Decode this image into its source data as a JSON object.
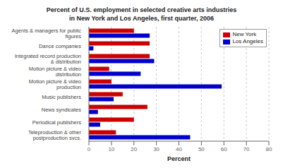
{
  "chart_data": {
    "type": "bar",
    "orientation": "horizontal",
    "title": "Percent of U.S. employment in selected creative arts industries\nin New York and Los Angeles, first quarter, 2006",
    "categories": [
      "Agents & managers for public figures",
      "Dance companies",
      "Integrated record production & distribution",
      "Motion picture & video distribution",
      "Motion picture & video production",
      "Music publishers",
      "News syndicates",
      "Periodical publishers",
      "Teleproduction & other postproduction svcs."
    ],
    "series": [
      {
        "name": "New York",
        "color": "#cc0000",
        "values": [
          20,
          27,
          27,
          9,
          10,
          15,
          26,
          20,
          12
        ]
      },
      {
        "name": "Los Angeles",
        "color": "#0000cc",
        "values": [
          27,
          2,
          29,
          23,
          59,
          11,
          4,
          5,
          45
        ]
      }
    ],
    "xlabel": "Percent",
    "xlim": [
      0,
      80
    ],
    "xticks": [
      0,
      10,
      20,
      30,
      40,
      50,
      60,
      70,
      80
    ],
    "grid": true,
    "legend": "upper right"
  }
}
